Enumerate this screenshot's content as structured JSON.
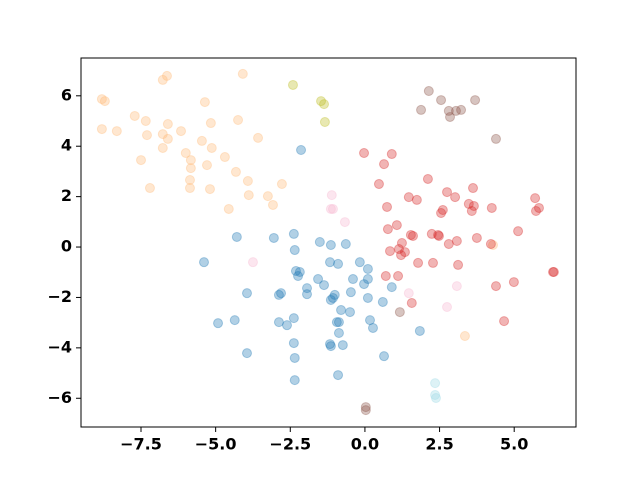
{
  "chart_data": {
    "type": "scatter",
    "xlim": [
      -9.51,
      7.07
    ],
    "ylim": [
      -7.14,
      7.5
    ],
    "xticks": [
      {
        "value": -7.5,
        "label": "−7.5"
      },
      {
        "value": -5,
        "label": "−5.0"
      },
      {
        "value": -2.5,
        "label": "−2.5"
      },
      {
        "value": 0,
        "label": "0.0"
      },
      2.5,
      {
        "value": 5,
        "label": "5.0"
      }
    ],
    "yticks": [
      {
        "value": -6,
        "label": "−6"
      },
      {
        "value": -4,
        "label": "−4"
      },
      {
        "value": -2,
        "label": "−2"
      },
      0,
      2,
      4,
      6
    ],
    "alpha": 0.35,
    "series": [
      {
        "color": "#ffbb78",
        "x": [
          -8.81,
          -8.71,
          -8.81,
          -8.31,
          -7.71,
          -7.34,
          -7.3,
          -7.5,
          -7.2,
          -6.77,
          -6.77,
          -6.77,
          -6.63,
          -6.6,
          -6.6,
          -6.16,
          -6.0,
          -5.83,
          -5.83,
          -5.86,
          -5.86,
          -5.36,
          -5.46,
          -5.29,
          -5.16,
          -5.13,
          -5.19,
          -4.69,
          -4.56,
          -4.32,
          -4.25,
          -4.09,
          -3.92,
          -3.89,
          -3.58,
          -3.25,
          -3.08,
          -2.78,
          4.29,
          3.35
        ],
        "values": [
          5.87,
          5.79,
          4.68,
          4.6,
          5.2,
          5.0,
          4.44,
          3.45,
          2.34,
          4.48,
          3.93,
          6.63,
          6.79,
          4.88,
          4.29,
          4.6,
          3.73,
          3.45,
          3.13,
          2.66,
          2.34,
          5.75,
          4.21,
          3.25,
          4.92,
          3.93,
          2.3,
          3.57,
          1.51,
          2.98,
          5.04,
          6.87,
          2.62,
          2.06,
          4.33,
          2.02,
          1.67,
          2.5,
          0.08,
          -3.53
        ]
      },
      {
        "color": "#1f77b4",
        "x": [
          -2.14,
          -5.39,
          -4.29,
          -3.95,
          -4.92,
          -4.36,
          -3.95,
          -3.05,
          -2.81,
          -2.88,
          -2.88,
          -2.61,
          -2.38,
          -2.38,
          -2.35,
          -2.35,
          -2.38,
          -2.35,
          -2.31,
          -2.24,
          -1.94,
          -1.57,
          -1.51,
          -1.37,
          -1.17,
          -1.14,
          -1.14,
          -1.07,
          -1.01,
          -0.94,
          -0.9,
          -0.87,
          -0.87,
          -0.8,
          -0.74,
          -0.64,
          -0.5,
          -0.47,
          -0.4,
          -0.17,
          -0.03,
          0.1,
          0.1,
          0.1,
          0.17,
          0.27,
          0.6,
          0.64,
          0.9,
          1.84,
          -0.9,
          -1.14,
          -1.17,
          -2.18,
          -1.94
        ],
        "values": [
          3.85,
          -0.6,
          0.4,
          -1.83,
          -3.02,
          -2.9,
          -4.21,
          0.36,
          -1.83,
          -1.9,
          -2.98,
          -3.1,
          -2.82,
          -3.81,
          -4.4,
          -5.28,
          0.52,
          -0.12,
          -0.95,
          -1.15,
          -1.63,
          -1.27,
          0.2,
          -1.51,
          -0.6,
          0.08,
          -2.1,
          -2.02,
          -1.9,
          -2.98,
          -0.67,
          -2.98,
          -3.41,
          -2.5,
          -3.89,
          0.12,
          -2.58,
          -1.79,
          -1.27,
          -0.6,
          -1.47,
          -0.87,
          -1.27,
          -2.02,
          -2.9,
          -3.21,
          -2.18,
          -4.33,
          -1.59,
          -3.33,
          -5.08,
          -3.93,
          -3.85,
          -0.99,
          -1.87
        ]
      },
      {
        "color": "#d62728",
        "x": [
          -0.03,
          0.47,
          0.64,
          0.9,
          0.74,
          1.07,
          0.77,
          0.84,
          1.24,
          1.21,
          1.14,
          1.34,
          1.11,
          0.7,
          1.47,
          1.74,
          1.54,
          1.61,
          1.78,
          1.57,
          2.11,
          2.24,
          2.28,
          2.45,
          2.48,
          2.75,
          2.61,
          2.55,
          2.81,
          3.02,
          3.08,
          3.12,
          3.48,
          3.58,
          3.62,
          3.65,
          3.75,
          4.22,
          4.25,
          4.39,
          4.66,
          4.99,
          5.13,
          5.7,
          5.73,
          5.83,
          6.3,
          6.33
        ],
        "values": [
          3.73,
          2.5,
          3.29,
          3.69,
          1.59,
          0.87,
          0.71,
          -0.16,
          0.16,
          -0.32,
          -0.08,
          -0.2,
          -1.15,
          -1.15,
          1.98,
          1.87,
          0.48,
          0.44,
          -0.63,
          -2.22,
          2.7,
          0.52,
          -0.63,
          0.48,
          0.44,
          2.18,
          1.47,
          1.35,
          0.12,
          1.98,
          0.24,
          -0.71,
          1.71,
          1.43,
          2.34,
          1.63,
          0.36,
          0.12,
          1.55,
          -1.55,
          -2.94,
          -1.39,
          0.63,
          1.94,
          1.43,
          1.55,
          -0.99,
          -0.99
        ]
      },
      {
        "color": "#8c564b",
        "x": [
          2.14,
          2.55,
          1.88,
          2.81,
          2.85,
          3.05,
          3.22,
          3.69,
          4.39,
          1.17,
          0.03,
          0.03
        ],
        "values": [
          6.19,
          5.83,
          5.44,
          5.4,
          5.16,
          5.4,
          5.44,
          5.83,
          4.29,
          -2.58,
          -6.35,
          -6.47
        ]
      },
      {
        "color": "#bcbd22",
        "x": [
          -2.41,
          -1.47,
          -1.37,
          -1.34
        ],
        "values": [
          6.43,
          5.79,
          5.67,
          4.96
        ]
      },
      {
        "color": "#f7b6d2",
        "x": [
          -1.11,
          -1.07,
          -1.14,
          -0.67,
          -3.75,
          1.47,
          3.08,
          2.75
        ],
        "values": [
          2.06,
          1.51,
          1.51,
          0.99,
          -0.6,
          -1.83,
          -1.55,
          -2.38
        ]
      },
      {
        "color": "#9edae5",
        "x": [
          2.35,
          2.35,
          2.38
        ],
        "values": [
          -5.4,
          -5.87,
          -5.99
        ]
      }
    ]
  }
}
